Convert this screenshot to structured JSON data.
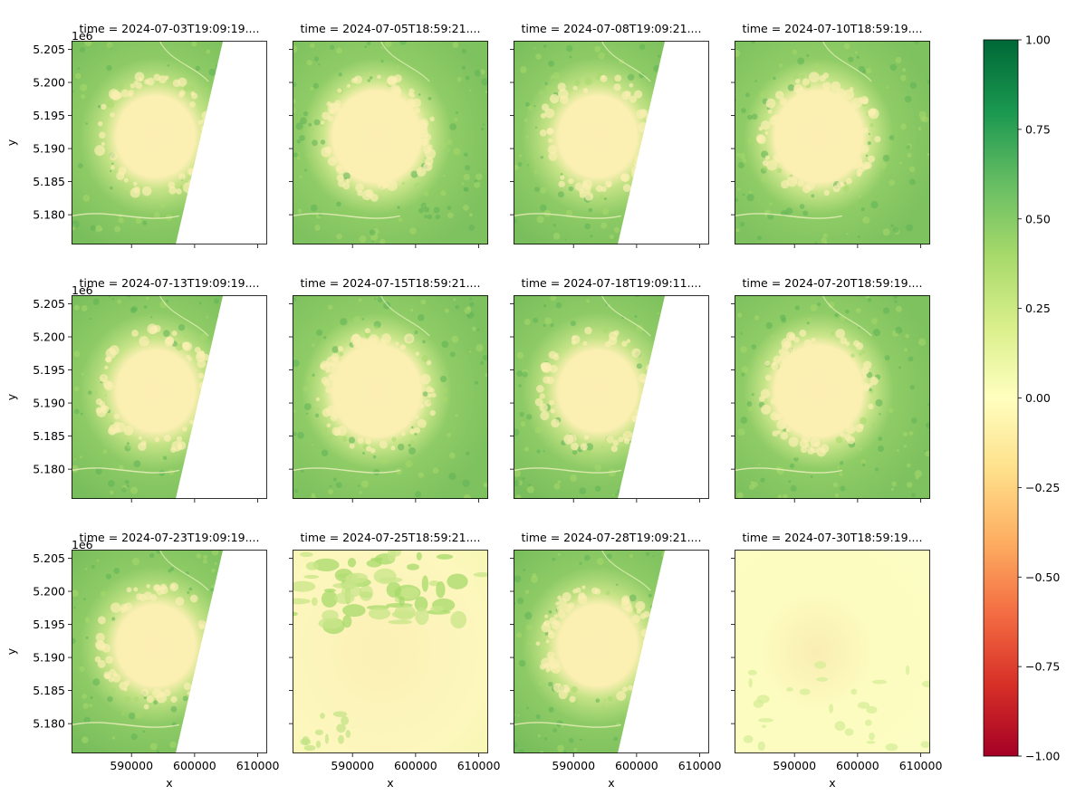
{
  "chart_data": {
    "type": "heatmap",
    "layout": "facet-grid-3x4",
    "panel_titles": [
      "time = 2024-07-03T19:09:19....",
      "time = 2024-07-05T18:59:21....",
      "time = 2024-07-08T19:09:21....",
      "time = 2024-07-10T18:59:19....",
      "time = 2024-07-13T19:09:19....",
      "time = 2024-07-15T18:59:21....",
      "time = 2024-07-18T19:09:11....",
      "time = 2024-07-20T18:59:19....",
      "time = 2024-07-23T19:09:19....",
      "time = 2024-07-25T18:59:21....",
      "time = 2024-07-28T19:09:21....",
      "time = 2024-07-30T18:59:19...."
    ],
    "panel_kind": [
      "partial",
      "full",
      "partial",
      "full",
      "partial",
      "full",
      "partial",
      "full",
      "partial-cloudy",
      "cloudy",
      "partial-cloudy",
      "very-cloudy"
    ],
    "xlabel": "x",
    "ylabel": "y",
    "y_offset_label": "1e6",
    "x_ticks": [
      590000,
      600000,
      610000
    ],
    "x_tick_labels": [
      "590000",
      "600000",
      "610000"
    ],
    "y_ticks": [
      5.18,
      5.185,
      5.19,
      5.195,
      5.2,
      5.205
    ],
    "y_tick_labels": [
      "5.180",
      "5.185",
      "5.190",
      "5.195",
      "5.200",
      "5.205"
    ],
    "xlim": [
      580500,
      611500
    ],
    "ylim": [
      5.1755,
      5.2063
    ],
    "swath_edge_x": {
      "at_top": 604500,
      "at_bottom": 597000
    },
    "colorbar": {
      "colormap": "RdYlGn",
      "vmin": -1.0,
      "vmax": 1.0,
      "ticks": [
        1.0,
        0.75,
        0.5,
        0.25,
        0.0,
        -0.25,
        -0.5,
        -0.75,
        -1.0
      ],
      "tick_labels": [
        "1.00",
        "0.75",
        "0.50",
        "0.25",
        "0.00",
        "−0.25",
        "−0.50",
        "−0.75",
        "−1.00"
      ]
    }
  }
}
